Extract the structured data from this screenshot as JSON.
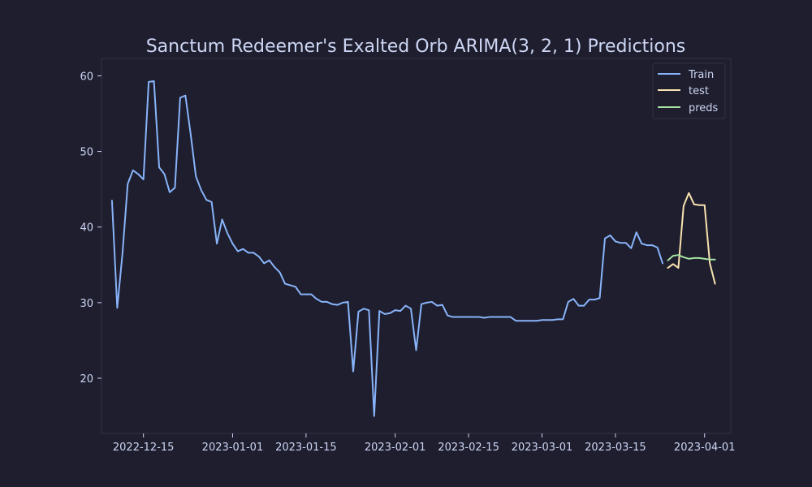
{
  "chart_data": {
    "type": "line",
    "title": "Sanctum Redeemer's Exalted Orb ARIMA(3, 2, 1) Predictions",
    "xlabel": "",
    "ylabel": "",
    "xlim": [
      "2022-12-07",
      "2023-04-06"
    ],
    "ylim": [
      12.7,
      62.3
    ],
    "x_ticks": [
      "2022-12-15",
      "2023-01-01",
      "2023-01-15",
      "2023-02-01",
      "2023-02-15",
      "2023-03-01",
      "2023-03-15",
      "2023-04-01"
    ],
    "y_ticks": [
      20,
      30,
      40,
      50,
      60
    ],
    "grid": false,
    "legend_position": "top-right",
    "colors": {
      "background": "#1e1e2e",
      "axes_edge": "#313244",
      "text": "#cdd6f4",
      "train": "#89b4fa",
      "test": "#f9e2af",
      "preds": "#a6e3a1"
    },
    "series": [
      {
        "name": "Train",
        "color_key": "train",
        "points": [
          [
            "2022-12-09",
            43.5
          ],
          [
            "2022-12-10",
            29.3
          ],
          [
            "2022-12-11",
            36.5
          ],
          [
            "2022-12-12",
            45.7
          ],
          [
            "2022-12-13",
            47.5
          ],
          [
            "2022-12-14",
            47.0
          ],
          [
            "2022-12-15",
            46.3
          ],
          [
            "2022-12-16",
            59.2
          ],
          [
            "2022-12-17",
            59.3
          ],
          [
            "2022-12-18",
            47.9
          ],
          [
            "2022-12-19",
            47.0
          ],
          [
            "2022-12-20",
            44.6
          ],
          [
            "2022-12-21",
            45.2
          ],
          [
            "2022-12-22",
            57.1
          ],
          [
            "2022-12-23",
            57.4
          ],
          [
            "2022-12-24",
            52.3
          ],
          [
            "2022-12-25",
            46.7
          ],
          [
            "2022-12-26",
            44.9
          ],
          [
            "2022-12-27",
            43.6
          ],
          [
            "2022-12-28",
            43.3
          ],
          [
            "2022-12-29",
            37.8
          ],
          [
            "2022-12-30",
            41.0
          ],
          [
            "2022-12-31",
            39.2
          ],
          [
            "2023-01-01",
            37.8
          ],
          [
            "2023-01-02",
            36.8
          ],
          [
            "2023-01-03",
            37.1
          ],
          [
            "2023-01-04",
            36.6
          ],
          [
            "2023-01-05",
            36.6
          ],
          [
            "2023-01-06",
            36.1
          ],
          [
            "2023-01-07",
            35.2
          ],
          [
            "2023-01-08",
            35.6
          ],
          [
            "2023-01-09",
            34.7
          ],
          [
            "2023-01-10",
            34.0
          ],
          [
            "2023-01-11",
            32.5
          ],
          [
            "2023-01-12",
            32.3
          ],
          [
            "2023-01-13",
            32.1
          ],
          [
            "2023-01-14",
            31.1
          ],
          [
            "2023-01-15",
            31.1
          ],
          [
            "2023-01-16",
            31.1
          ],
          [
            "2023-01-17",
            30.5
          ],
          [
            "2023-01-18",
            30.1
          ],
          [
            "2023-01-19",
            30.1
          ],
          [
            "2023-01-20",
            29.8
          ],
          [
            "2023-01-21",
            29.7
          ],
          [
            "2023-01-22",
            30.0
          ],
          [
            "2023-01-23",
            30.1
          ],
          [
            "2023-01-24",
            20.9
          ],
          [
            "2023-01-25",
            28.8
          ],
          [
            "2023-01-26",
            29.2
          ],
          [
            "2023-01-27",
            29.0
          ],
          [
            "2023-01-28",
            15.0
          ],
          [
            "2023-01-29",
            28.9
          ],
          [
            "2023-01-30",
            28.5
          ],
          [
            "2023-01-31",
            28.6
          ],
          [
            "2023-02-01",
            29.0
          ],
          [
            "2023-02-02",
            28.9
          ],
          [
            "2023-02-03",
            29.6
          ],
          [
            "2023-02-04",
            29.2
          ],
          [
            "2023-02-05",
            23.7
          ],
          [
            "2023-02-06",
            29.8
          ],
          [
            "2023-02-07",
            30.0
          ],
          [
            "2023-02-08",
            30.1
          ],
          [
            "2023-02-09",
            29.6
          ],
          [
            "2023-02-10",
            29.7
          ],
          [
            "2023-02-11",
            28.3
          ],
          [
            "2023-02-12",
            28.1
          ],
          [
            "2023-02-13",
            28.1
          ],
          [
            "2023-02-14",
            28.1
          ],
          [
            "2023-02-15",
            28.1
          ],
          [
            "2023-02-16",
            28.1
          ],
          [
            "2023-02-17",
            28.1
          ],
          [
            "2023-02-18",
            28.0
          ],
          [
            "2023-02-19",
            28.1
          ],
          [
            "2023-02-20",
            28.1
          ],
          [
            "2023-02-21",
            28.1
          ],
          [
            "2023-02-22",
            28.1
          ],
          [
            "2023-02-23",
            28.1
          ],
          [
            "2023-02-24",
            27.6
          ],
          [
            "2023-02-25",
            27.6
          ],
          [
            "2023-02-26",
            27.6
          ],
          [
            "2023-02-27",
            27.6
          ],
          [
            "2023-02-28",
            27.6
          ],
          [
            "2023-03-01",
            27.7
          ],
          [
            "2023-03-02",
            27.7
          ],
          [
            "2023-03-03",
            27.7
          ],
          [
            "2023-03-04",
            27.8
          ],
          [
            "2023-03-05",
            27.8
          ],
          [
            "2023-03-06",
            30.1
          ],
          [
            "2023-03-07",
            30.5
          ],
          [
            "2023-03-08",
            29.6
          ],
          [
            "2023-03-09",
            29.6
          ],
          [
            "2023-03-10",
            30.4
          ],
          [
            "2023-03-11",
            30.4
          ],
          [
            "2023-03-12",
            30.6
          ],
          [
            "2023-03-13",
            38.5
          ],
          [
            "2023-03-14",
            38.9
          ],
          [
            "2023-03-15",
            38.1
          ],
          [
            "2023-03-16",
            37.9
          ],
          [
            "2023-03-17",
            37.9
          ],
          [
            "2023-03-18",
            37.2
          ],
          [
            "2023-03-19",
            39.3
          ],
          [
            "2023-03-20",
            37.8
          ],
          [
            "2023-03-21",
            37.6
          ],
          [
            "2023-03-22",
            37.6
          ],
          [
            "2023-03-23",
            37.3
          ],
          [
            "2023-03-24",
            35.2
          ]
        ]
      },
      {
        "name": "test",
        "color_key": "test",
        "points": [
          [
            "2023-03-25",
            34.6
          ],
          [
            "2023-03-26",
            35.1
          ],
          [
            "2023-03-27",
            34.6
          ],
          [
            "2023-03-28",
            42.8
          ],
          [
            "2023-03-29",
            44.5
          ],
          [
            "2023-03-30",
            43.0
          ],
          [
            "2023-03-31",
            42.9
          ],
          [
            "2023-04-01",
            42.9
          ],
          [
            "2023-04-02",
            35.2
          ],
          [
            "2023-04-03",
            32.5
          ]
        ]
      },
      {
        "name": "preds",
        "color_key": "preds",
        "points": [
          [
            "2023-03-25",
            35.6
          ],
          [
            "2023-03-26",
            36.2
          ],
          [
            "2023-03-27",
            36.3
          ],
          [
            "2023-03-28",
            36.0
          ],
          [
            "2023-03-29",
            35.8
          ],
          [
            "2023-03-30",
            35.9
          ],
          [
            "2023-03-31",
            35.9
          ],
          [
            "2023-04-01",
            35.8
          ],
          [
            "2023-04-02",
            35.7
          ],
          [
            "2023-04-03",
            35.7
          ]
        ]
      }
    ]
  }
}
